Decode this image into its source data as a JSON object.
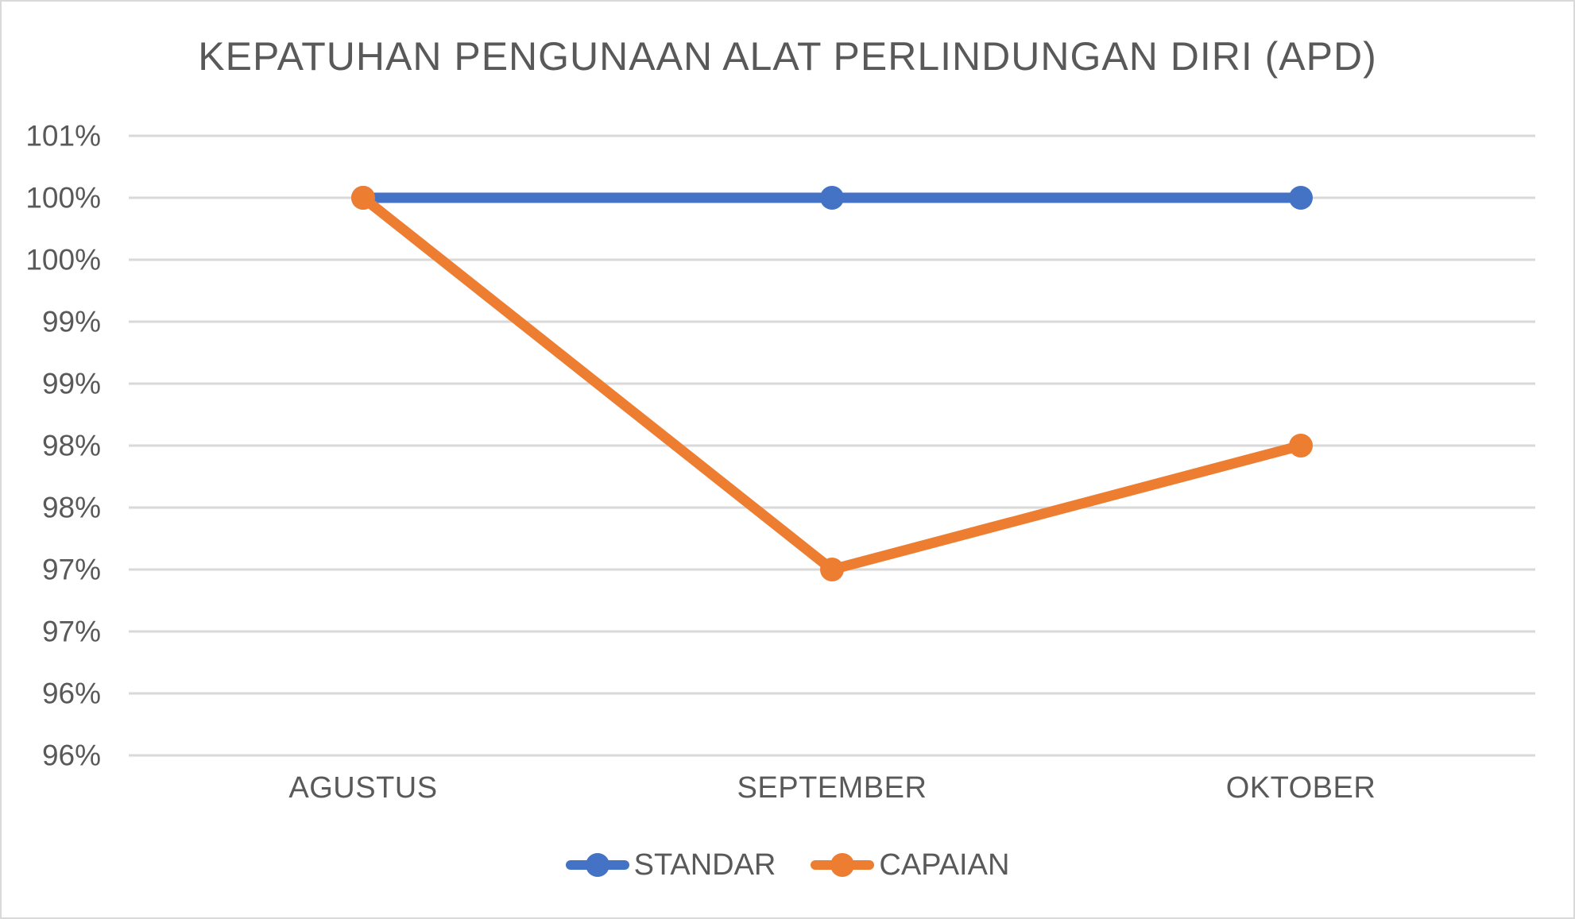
{
  "window": {
    "background": "#FFFFFF",
    "border_color": "#D9D9D9"
  },
  "chart_data": {
    "type": "line",
    "title": "KEPATUHAN PENGUNAAN ALAT PERLINDUNGAN DIRI (APD)",
    "categories": [
      "AGUSTUS",
      "SEPTEMBER",
      "OKTOBER"
    ],
    "series": [
      {
        "name": "STANDAR",
        "values": [
          1.0,
          1.0,
          1.0
        ],
        "color": "#4472C4"
      },
      {
        "name": "CAPAIAN",
        "values": [
          1.0,
          0.97,
          0.98
        ],
        "color": "#ED7D31"
      }
    ],
    "y_axis": {
      "min": 0.955,
      "max": 1.005,
      "step": 0.005,
      "tick_labels_top_to_bottom": [
        "101%",
        "100%",
        "100%",
        "99%",
        "99%",
        "98%",
        "98%",
        "97%",
        "97%",
        "96%",
        "96%"
      ]
    },
    "grid": true,
    "gridline_color": "#D9D9D9",
    "text_color": "#595959",
    "legend_position": "bottom",
    "legend_entries": [
      "STANDAR",
      "CAPAIAN"
    ]
  }
}
